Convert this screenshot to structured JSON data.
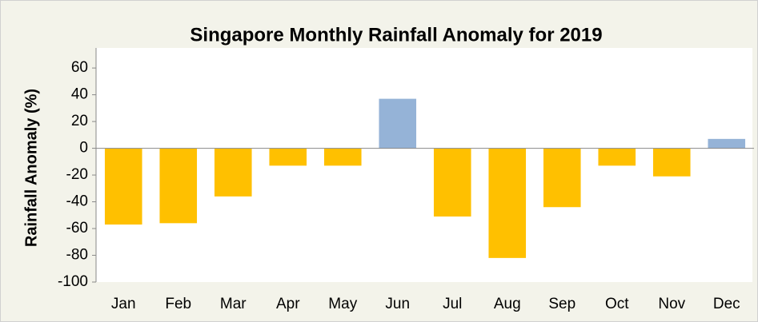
{
  "chart_data": {
    "type": "bar",
    "title": "Singapore Monthly Rainfall Anomaly for 2019",
    "y_label": "Rainfall Anomaly  (%)",
    "categories": [
      "Jan",
      "Feb",
      "Mar",
      "Apr",
      "May",
      "Jun",
      "Jul",
      "Aug",
      "Sep",
      "Oct",
      "Nov",
      "Dec"
    ],
    "values": [
      -57,
      -56,
      -36,
      -13,
      -13,
      37,
      -51,
      -82,
      -44,
      -13,
      -21,
      7
    ],
    "colors": [
      "#ffc000",
      "#ffc000",
      "#ffc000",
      "#ffc000",
      "#ffc000",
      "#95b3d7",
      "#ffc000",
      "#ffc000",
      "#ffc000",
      "#ffc000",
      "#ffc000",
      "#95b3d7"
    ],
    "ylim": [
      -100,
      75
    ],
    "yticks": [
      -100,
      -80,
      -60,
      -40,
      -20,
      0,
      20,
      40,
      60
    ],
    "grid": false
  }
}
